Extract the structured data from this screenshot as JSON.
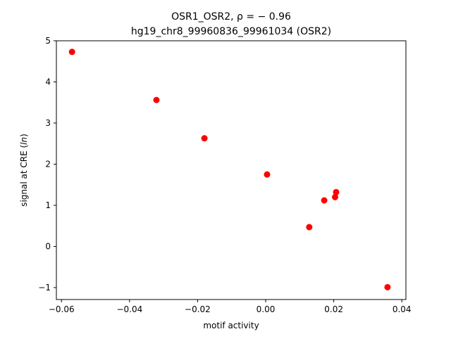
{
  "chart_data": {
    "type": "scatter",
    "title_line1": "OSR1_OSR2, ρ = − 0.96",
    "title_line2": "hg19_chr8_99960836_99961034 (OSR2)",
    "xlabel": "motif activity",
    "ylabel_prefix": "signal at CRE (",
    "ylabel_italic": "ln",
    "ylabel_suffix": ")",
    "xlim": [
      -0.0615,
      0.0412
    ],
    "ylim": [
      -1.29,
      5.0
    ],
    "x_ticks": [
      {
        "value": -0.06,
        "label": "−0.06"
      },
      {
        "value": -0.04,
        "label": "−0.04"
      },
      {
        "value": -0.02,
        "label": "−0.02"
      },
      {
        "value": 0.0,
        "label": "0.00"
      },
      {
        "value": 0.02,
        "label": "0.02"
      },
      {
        "value": 0.04,
        "label": "0.04"
      }
    ],
    "y_ticks": [
      {
        "value": -1,
        "label": "−1"
      },
      {
        "value": 0,
        "label": "0"
      },
      {
        "value": 1,
        "label": "1"
      },
      {
        "value": 2,
        "label": "2"
      },
      {
        "value": 3,
        "label": "3"
      },
      {
        "value": 4,
        "label": "4"
      },
      {
        "value": 5,
        "label": "5"
      }
    ],
    "grid": false,
    "point_color": "#ff0000",
    "points": [
      {
        "x": -0.0569,
        "y": 4.73
      },
      {
        "x": -0.0321,
        "y": 3.56
      },
      {
        "x": -0.018,
        "y": 2.63
      },
      {
        "x": 0.0004,
        "y": 1.75
      },
      {
        "x": 0.0128,
        "y": 0.47
      },
      {
        "x": 0.0172,
        "y": 1.12
      },
      {
        "x": 0.0204,
        "y": 1.2
      },
      {
        "x": 0.0207,
        "y": 1.32
      },
      {
        "x": 0.0358,
        "y": -0.99
      }
    ]
  }
}
